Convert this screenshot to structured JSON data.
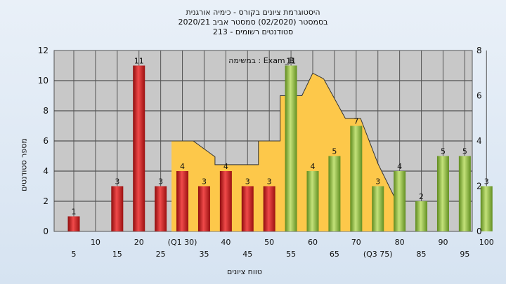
{
  "chart_data": {
    "type": "bar",
    "title": [
      "היסטוגרמת ציונים בקורס - כימיה אורגנית",
      "בסמסטר  (02/2020)  סמסטר אביב 2020/21",
      "סטודנטים רשומים - 213"
    ],
    "ylabel": "מספר סטודנטים",
    "xlabel": "טווח ציונים",
    "annotation": "במשימה : Exam_B",
    "ylim": [
      0,
      12
    ],
    "yticks": [
      0,
      2,
      4,
      6,
      8,
      10,
      12
    ],
    "y2lim": [
      0,
      8
    ],
    "y2ticks": [
      0,
      2,
      4,
      6,
      8
    ],
    "grid": true,
    "categories": [
      5,
      10,
      15,
      20,
      25,
      30,
      35,
      40,
      45,
      50,
      55,
      60,
      65,
      70,
      75,
      80,
      85,
      90,
      95,
      100
    ],
    "xtick_labels": [
      "5",
      "10",
      "15",
      "20",
      "25",
      "(Q1 30)",
      "35",
      "40",
      "45",
      "50",
      "55",
      "60",
      "65",
      "70",
      "(Q3 75)",
      "80",
      "85",
      "90",
      "95",
      "100"
    ],
    "series": [
      {
        "values": [
          1,
          0,
          3,
          11,
          3,
          4,
          3,
          4,
          3,
          3,
          11,
          4,
          5,
          7,
          3,
          4,
          2,
          5,
          5,
          3
        ],
        "data_labels": [
          "1",
          "",
          "3",
          "11",
          "3",
          "4",
          "3",
          "4",
          "3",
          "3",
          "11",
          "4",
          "5",
          "7",
          "3",
          "4",
          "2",
          "5",
          "5",
          "3"
        ]
      }
    ],
    "background_area": {
      "x": [
        27.5,
        27.5,
        32.5,
        37.5,
        37.5,
        47.5,
        47.5,
        52.5,
        52.5,
        57.5,
        60,
        62.5,
        67.5,
        71,
        75,
        80
      ],
      "y2": [
        0,
        4,
        4,
        3.3,
        2.95,
        2.95,
        4,
        4,
        6,
        6,
        7,
        6.75,
        5,
        5,
        3,
        1.05
      ]
    },
    "colors": {
      "fail_bar": "#e02626",
      "pass_bar": "#9cc64c",
      "area": "#fdc84a",
      "plot_bg": "#c8c8c8"
    }
  }
}
